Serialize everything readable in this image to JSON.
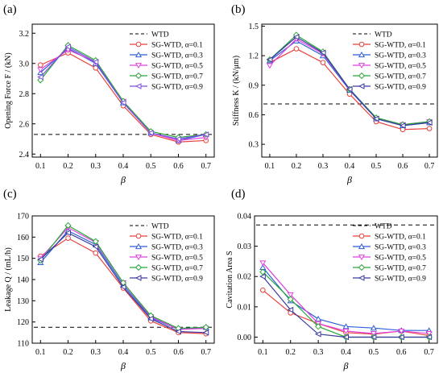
{
  "chart_data": [
    {
      "type": "line",
      "panel_label": "(a)",
      "xlabel": "β",
      "ylabel": "Opening Force F / (kN)",
      "x": [
        0.1,
        0.2,
        0.3,
        0.4,
        0.5,
        0.6,
        0.7
      ],
      "xticks": [
        "0.1",
        "0.2",
        "0.3",
        "0.4",
        "0.5",
        "0.6",
        "0.7"
      ],
      "ylim": [
        2.38,
        3.26
      ],
      "yticks": [
        "2.4",
        "2.6",
        "2.8",
        "3.0",
        "3.2"
      ],
      "reference": {
        "name": "WTD",
        "value": 2.53
      },
      "legend_position": "top-right",
      "series": [
        {
          "name": "SG-WTD, α=0.1",
          "color": "#e8413c",
          "values": [
            2.99,
            3.07,
            2.97,
            2.72,
            2.53,
            2.48,
            2.49
          ]
        },
        {
          "name": "SG-WTD, α=0.3",
          "color": "#2f5ed8",
          "values": [
            2.94,
            3.1,
            3.0,
            2.74,
            2.54,
            2.49,
            2.53
          ]
        },
        {
          "name": "SG-WTD, α=0.5",
          "color": "#e040e0",
          "values": [
            2.96,
            3.09,
            3.01,
            2.75,
            2.54,
            2.49,
            2.51
          ]
        },
        {
          "name": "SG-WTD, α=0.7",
          "color": "#2aa83a",
          "values": [
            2.89,
            3.12,
            3.02,
            2.75,
            2.55,
            2.51,
            2.53
          ]
        },
        {
          "name": "SG-WTD, α=0.9",
          "color": "#7b4fe0",
          "values": [
            2.91,
            3.11,
            3.01,
            2.74,
            2.54,
            2.5,
            2.53
          ]
        }
      ]
    },
    {
      "type": "line",
      "panel_label": "(b)",
      "xlabel": "β",
      "ylabel": "Stiffness K / (kN/μm)",
      "x": [
        0.1,
        0.2,
        0.3,
        0.4,
        0.5,
        0.6,
        0.7
      ],
      "xticks": [
        "0.1",
        "0.2",
        "0.3",
        "0.4",
        "0.5",
        "0.6",
        "0.7"
      ],
      "ylim": [
        0.17,
        1.52
      ],
      "yticks": [
        "0.3",
        "0.6",
        "0.9",
        "1.2",
        "1.5"
      ],
      "reference": {
        "name": "WTD",
        "value": 0.71
      },
      "legend_position": "top-right",
      "series": [
        {
          "name": "SG-WTD, α=0.1",
          "color": "#e8413c",
          "values": [
            1.13,
            1.27,
            1.13,
            0.81,
            0.53,
            0.45,
            0.46
          ]
        },
        {
          "name": "SG-WTD, α=0.3",
          "color": "#2f5ed8",
          "values": [
            1.15,
            1.35,
            1.2,
            0.85,
            0.56,
            0.49,
            0.52
          ]
        },
        {
          "name": "SG-WTD, α=0.5",
          "color": "#e040e0",
          "values": [
            1.1,
            1.37,
            1.22,
            0.86,
            0.56,
            0.5,
            0.53
          ]
        },
        {
          "name": "SG-WTD, α=0.7",
          "color": "#2aa83a",
          "values": [
            1.16,
            1.41,
            1.24,
            0.86,
            0.57,
            0.5,
            0.53
          ]
        },
        {
          "name": "SG-WTD, α=0.9",
          "color": "#3a3aa0",
          "values": [
            1.16,
            1.39,
            1.23,
            0.86,
            0.56,
            0.49,
            0.52
          ]
        }
      ]
    },
    {
      "type": "line",
      "panel_label": "(c)",
      "xlabel": "β",
      "ylabel": "Leakage Q / (mL/h)",
      "x": [
        0.1,
        0.2,
        0.3,
        0.4,
        0.5,
        0.6,
        0.7
      ],
      "xticks": [
        "0.1",
        "0.2",
        "0.3",
        "0.4",
        "0.5",
        "0.6",
        "0.7"
      ],
      "ylim": [
        110,
        170
      ],
      "yticks": [
        "110",
        "120",
        "130",
        "140",
        "150",
        "160",
        "170"
      ],
      "reference": {
        "name": "WTD",
        "value": 117.5
      },
      "legend_position": "top-right",
      "series": [
        {
          "name": "SG-WTD, α=0.1",
          "color": "#e8413c",
          "values": [
            151,
            159.5,
            152.5,
            136,
            120.5,
            115,
            114.5
          ]
        },
        {
          "name": "SG-WTD, α=0.3",
          "color": "#2f5ed8",
          "values": [
            148,
            163,
            156.5,
            137.5,
            122,
            116.5,
            117.5
          ]
        },
        {
          "name": "SG-WTD, α=0.5",
          "color": "#e040e0",
          "values": [
            150,
            164.5,
            157.5,
            138.5,
            122.5,
            116.5,
            117
          ]
        },
        {
          "name": "SG-WTD, α=0.7",
          "color": "#2aa83a",
          "values": [
            149,
            165.5,
            158,
            138.5,
            123,
            117,
            117.5
          ]
        },
        {
          "name": "SG-WTD, α=0.9",
          "color": "#3a3aa0",
          "values": [
            149.5,
            162,
            155.5,
            136.5,
            121.5,
            115.5,
            115
          ]
        }
      ]
    },
    {
      "type": "line",
      "panel_label": "(d)",
      "xlabel": "β",
      "ylabel": "Cavitation Area S",
      "x": [
        0.1,
        0.2,
        0.3,
        0.4,
        0.5,
        0.6,
        0.7
      ],
      "xticks": [
        "0.1",
        "0.2",
        "0.3",
        "0.4",
        "0.5",
        "0.6",
        "0.7"
      ],
      "ylim": [
        -0.002,
        0.04
      ],
      "yticks": [
        "0.00",
        "0.01",
        "0.02",
        "0.03",
        "0.04"
      ],
      "reference": {
        "name": "WTD",
        "value": 0.037
      },
      "legend_position": "top-right",
      "series": [
        {
          "name": "SG-WTD, α=0.1",
          "color": "#e8413c",
          "values": [
            0.0155,
            0.008,
            0.0045,
            0.0015,
            0.001,
            0.002,
            0.0005
          ]
        },
        {
          "name": "SG-WTD, α=0.3",
          "color": "#2f5ed8",
          "values": [
            0.023,
            0.012,
            0.006,
            0.0035,
            0.003,
            0.0022,
            0.0022
          ]
        },
        {
          "name": "SG-WTD, α=0.5",
          "color": "#e040e0",
          "values": [
            0.0245,
            0.014,
            0.0045,
            0.002,
            0.0012,
            0.002,
            0.0012
          ]
        },
        {
          "name": "SG-WTD, α=0.7",
          "color": "#2aa83a",
          "values": [
            0.0215,
            0.0125,
            0.0035,
            0.0,
            0.0,
            0.0,
            0.0
          ]
        },
        {
          "name": "SG-WTD, α=0.9",
          "color": "#3a3aa0",
          "values": [
            0.02,
            0.009,
            0.001,
            0.0,
            0.0,
            0.0,
            0.0
          ]
        }
      ]
    }
  ]
}
